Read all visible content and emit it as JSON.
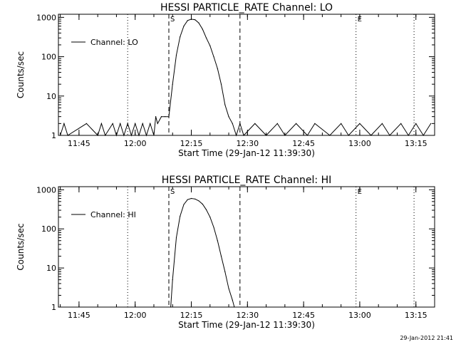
{
  "footer_timestamp": "29-Jan-2012 21:41",
  "chart_data": [
    {
      "type": "line",
      "title": "HESSI PARTICLE_RATE Channel: LO",
      "xlabel": "Start Time (29-Jan-12 11:39:30)",
      "ylabel": "Counts/sec",
      "yscale": "log",
      "xlim": [
        "11:39:30",
        "13:20:00"
      ],
      "ylim": [
        1,
        1200
      ],
      "xticks": [
        "11:45",
        "12:00",
        "12:15",
        "12:30",
        "12:45",
        "13:00",
        "13:15"
      ],
      "yticks": [
        "1",
        "10",
        "100",
        "1000"
      ],
      "legend": {
        "position": "top-left",
        "label": "Channel: LO"
      },
      "markers": [
        {
          "label": "S",
          "time": "12:09:00",
          "style": "dashed"
        },
        {
          "time": "12:28:00",
          "style": "dashed"
        },
        {
          "label": "E",
          "time": "12:59:00",
          "style": "dotted"
        }
      ],
      "reference_lines": [
        {
          "time": "11:58:00",
          "style": "dotted"
        },
        {
          "time": "13:14:30",
          "style": "dotted"
        }
      ],
      "series": [
        {
          "x": [
            "11:40:00",
            "11:41:00",
            "11:42:00",
            "11:47:00",
            "11:50:00",
            "11:51:00",
            "11:52:00",
            "11:54:00",
            "11:55:00",
            "11:56:00",
            "11:57:00",
            "11:58:00",
            "11:59:00",
            "12:00:00",
            "12:01:00",
            "12:02:00",
            "12:03:00",
            "12:04:00",
            "12:05:00",
            "12:05:30",
            "12:06:00",
            "12:07:00",
            "12:08:00",
            "12:09:00",
            "12:10:00",
            "12:11:00",
            "12:12:00",
            "12:13:00",
            "12:14:00",
            "12:15:00",
            "12:16:00",
            "12:17:00",
            "12:18:00",
            "12:19:00",
            "12:20:00",
            "12:21:00",
            "12:22:00",
            "12:23:00",
            "12:24:00",
            "12:25:00",
            "12:26:00",
            "12:27:00",
            "12:28:00",
            "12:29:00",
            "12:32:00",
            "12:35:00",
            "12:38:00",
            "12:40:00",
            "12:43:00",
            "12:46:00",
            "12:48:00",
            "12:52:00",
            "12:55:00",
            "12:57:00",
            "13:00:00",
            "13:03:00",
            "13:06:00",
            "13:08:00",
            "13:11:00",
            "13:13:00",
            "13:15:00",
            "13:17:00",
            "13:19:00"
          ],
          "values": [
            1,
            2,
            1,
            2,
            1,
            2,
            1,
            2,
            1,
            2,
            1,
            2,
            1,
            2,
            1,
            2,
            1,
            2,
            1,
            3,
            2,
            3,
            3,
            3,
            20,
            110,
            320,
            600,
            830,
            900,
            870,
            720,
            500,
            300,
            190,
            100,
            50,
            20,
            6,
            3,
            2,
            1,
            2,
            1,
            2,
            1,
            2,
            1,
            2,
            1,
            2,
            1,
            2,
            1,
            2,
            1,
            2,
            1,
            2,
            1,
            2,
            1,
            2
          ]
        }
      ]
    },
    {
      "type": "line",
      "title": "HESSI PARTICLE_RATE Channel: HI",
      "xlabel": "Start Time (29-Jan-12 11:39:30)",
      "ylabel": "Counts/sec",
      "yscale": "log",
      "xlim": [
        "11:39:30",
        "13:20:00"
      ],
      "ylim": [
        1,
        1200
      ],
      "xticks": [
        "11:45",
        "12:00",
        "12:15",
        "12:30",
        "12:45",
        "13:00",
        "13:15"
      ],
      "yticks": [
        "1",
        "10",
        "100",
        "1000"
      ],
      "legend": {
        "position": "top-left",
        "label": "Channel: HI"
      },
      "markers": [
        {
          "label": "S",
          "time": "12:09:00",
          "style": "dashed"
        },
        {
          "time": "12:28:00",
          "style": "dashed"
        },
        {
          "label": "E",
          "time": "12:59:00",
          "style": "dotted"
        }
      ],
      "reference_lines": [
        {
          "time": "11:58:00",
          "style": "dotted"
        },
        {
          "time": "13:14:30",
          "style": "dotted"
        }
      ],
      "series": [
        {
          "x": [
            "12:09:30",
            "12:10:00",
            "12:11:00",
            "12:12:00",
            "12:13:00",
            "12:14:00",
            "12:15:00",
            "12:16:00",
            "12:17:00",
            "12:18:00",
            "12:19:00",
            "12:20:00",
            "12:21:00",
            "12:22:00",
            "12:23:00",
            "12:24:00",
            "12:25:00",
            "12:26:00",
            "12:26:30"
          ],
          "values": [
            1,
            5,
            60,
            210,
            420,
            560,
            600,
            580,
            520,
            430,
            310,
            200,
            110,
            50,
            20,
            8,
            3,
            1.5,
            1
          ]
        }
      ]
    }
  ]
}
